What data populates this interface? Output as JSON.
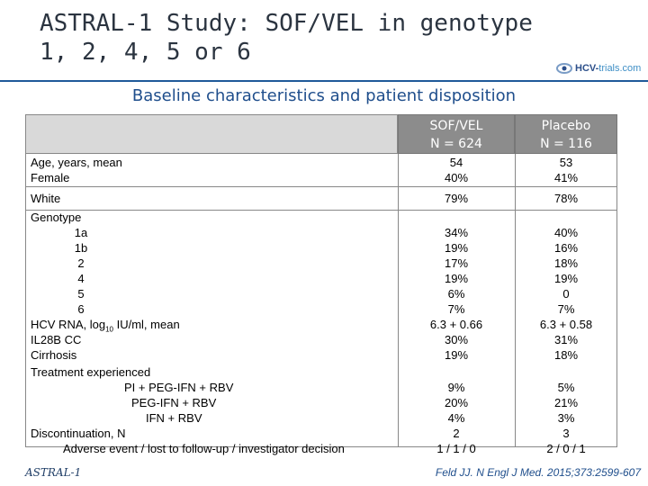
{
  "title": {
    "line1": "ASTRAL-1 Study: SOF/VEL in genotype",
    "line2": "1, 2, 4, 5 or 6"
  },
  "logo": {
    "brand": "HCV-",
    "brand_light": "trials.com"
  },
  "subtitle": "Baseline characteristics and patient disposition",
  "columns": {
    "sof": {
      "name": "SOF/VEL",
      "n": "N = 624"
    },
    "placebo": {
      "name": "Placebo",
      "n": "N = 116"
    }
  },
  "rows": {
    "age": {
      "label": "Age, years, mean",
      "sof": "54",
      "placebo": "53"
    },
    "female": {
      "label": "Female",
      "sof": "40%",
      "placebo": "41%"
    },
    "white": {
      "label": "White",
      "sof": "79%",
      "placebo": "78%"
    },
    "genotype": {
      "label": "Genotype"
    },
    "g1a": {
      "label": "1a",
      "sof": "34%",
      "placebo": "40%"
    },
    "g1b": {
      "label": "1b",
      "sof": "19%",
      "placebo": "16%"
    },
    "g2": {
      "label": "2",
      "sof": "17%",
      "placebo": "18%"
    },
    "g4": {
      "label": "4",
      "sof": "19%",
      "placebo": "19%"
    },
    "g5": {
      "label": "5",
      "sof": "6%",
      "placebo": "0"
    },
    "g6": {
      "label": "6",
      "sof": "7%",
      "placebo": "7%"
    },
    "hcvrna": {
      "label_pre": "HCV RNA, log",
      "label_sub": "10",
      "label_post": " IU/ml, mean",
      "sof": "6.3 + 0.66",
      "placebo": "6.3 + 0.58"
    },
    "il28b": {
      "label": "IL28B CC",
      "sof": "30%",
      "placebo": "31%"
    },
    "cirrhosis": {
      "label": "Cirrhosis",
      "sof": "19%",
      "placebo": "18%"
    },
    "tx_exp": {
      "label": "Treatment experienced"
    },
    "pi": {
      "label": "PI + PEG-IFN + RBV",
      "sof": "9%",
      "placebo": "5%"
    },
    "peg": {
      "label": "PEG-IFN + RBV",
      "sof": "20%",
      "placebo": "21%"
    },
    "ifn": {
      "label": "IFN + RBV",
      "sof": "4%",
      "placebo": "3%"
    },
    "discont": {
      "label": "Discontinuation, N",
      "sof": "2",
      "placebo": "3"
    },
    "ae": {
      "label": "Adverse event / lost to follow-up / investigator decision",
      "sof": "1 / 1 / 0",
      "placebo": "2 / 0 / 1"
    }
  },
  "footer": {
    "left": "ASTRAL-1",
    "right": "Feld JJ. N Engl J Med. 2015;373:2599-607"
  }
}
